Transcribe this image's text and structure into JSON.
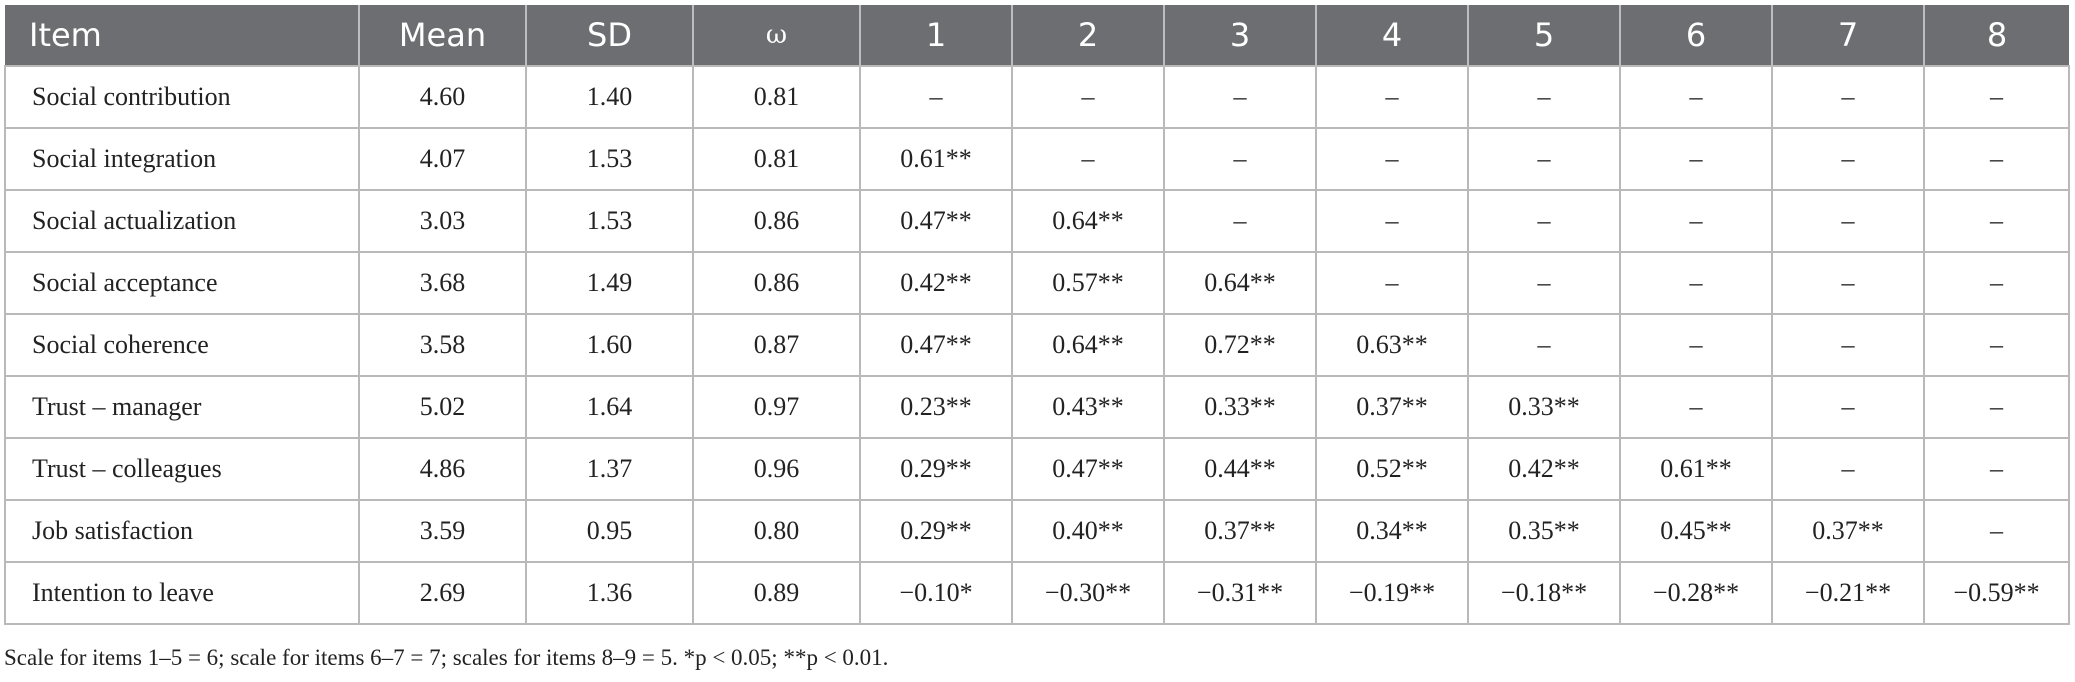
{
  "table": {
    "headers": [
      "Item",
      "Mean",
      "SD",
      "ω",
      "1",
      "2",
      "3",
      "4",
      "5",
      "6",
      "7",
      "8"
    ],
    "rows": [
      [
        "Social contribution",
        "4.60",
        "1.40",
        "0.81",
        "–",
        "–",
        "–",
        "–",
        "–",
        "–",
        "–",
        "–"
      ],
      [
        "Social integration",
        "4.07",
        "1.53",
        "0.81",
        "0.61**",
        "–",
        "–",
        "–",
        "–",
        "–",
        "–",
        "–"
      ],
      [
        "Social actualization",
        "3.03",
        "1.53",
        "0.86",
        "0.47**",
        "0.64**",
        "–",
        "–",
        "–",
        "–",
        "–",
        "–"
      ],
      [
        "Social acceptance",
        "3.68",
        "1.49",
        "0.86",
        "0.42**",
        "0.57**",
        "0.64**",
        "–",
        "–",
        "–",
        "–",
        "–"
      ],
      [
        "Social coherence",
        "3.58",
        "1.60",
        "0.87",
        "0.47**",
        "0.64**",
        "0.72**",
        "0.63**",
        "–",
        "–",
        "–",
        "–"
      ],
      [
        "Trust – manager",
        "5.02",
        "1.64",
        "0.97",
        "0.23**",
        "0.43**",
        "0.33**",
        "0.37**",
        "0.33**",
        "–",
        "–",
        "–"
      ],
      [
        "Trust – colleagues",
        "4.86",
        "1.37",
        "0.96",
        "0.29**",
        "0.47**",
        "0.44**",
        "0.52**",
        "0.42**",
        "0.61**",
        "–",
        "–"
      ],
      [
        "Job satisfaction",
        "3.59",
        "0.95",
        "0.80",
        "0.29**",
        "0.40**",
        "0.37**",
        "0.34**",
        "0.35**",
        "0.45**",
        "0.37**",
        "–"
      ],
      [
        "Intention to leave",
        "2.69",
        "1.36",
        "0.89",
        "−0.10*",
        "−0.30**",
        "−0.31**",
        "−0.19**",
        "−0.18**",
        "−0.28**",
        "−0.21**",
        "−0.59**"
      ]
    ]
  },
  "note": "Scale for items 1–5 = 6; scale for items 6–7 = 7; scales for items 8–9 = 5. *p < 0.05; **p < 0.01."
}
